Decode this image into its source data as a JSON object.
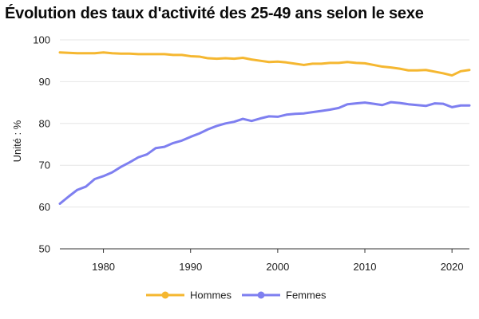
{
  "chart_data": {
    "type": "line",
    "title": "Évolution des taux d'activité des 25-49 ans selon le sexe",
    "xlabel": "",
    "ylabel": "Unité : %",
    "xlim": [
      1975,
      2022
    ],
    "ylim": [
      50,
      100
    ],
    "x_ticks": [
      1980,
      1990,
      2000,
      2010,
      2020
    ],
    "y_ticks": [
      50,
      60,
      70,
      80,
      90,
      100
    ],
    "grid": "horizontal",
    "legend_position": "bottom",
    "x": [
      1975,
      1976,
      1977,
      1978,
      1979,
      1980,
      1981,
      1982,
      1983,
      1984,
      1985,
      1986,
      1987,
      1988,
      1989,
      1990,
      1991,
      1992,
      1993,
      1994,
      1995,
      1996,
      1997,
      1998,
      1999,
      2000,
      2001,
      2002,
      2003,
      2004,
      2005,
      2006,
      2007,
      2008,
      2009,
      2010,
      2011,
      2012,
      2013,
      2014,
      2015,
      2016,
      2017,
      2018,
      2019,
      2020,
      2021,
      2022
    ],
    "series": [
      {
        "name": "Hommes",
        "color": "#F5B730",
        "values": [
          97.0,
          96.9,
          96.8,
          96.8,
          96.8,
          97.0,
          96.8,
          96.7,
          96.7,
          96.6,
          96.6,
          96.6,
          96.6,
          96.4,
          96.4,
          96.1,
          96.0,
          95.6,
          95.5,
          95.6,
          95.5,
          95.7,
          95.3,
          95.0,
          94.7,
          94.8,
          94.6,
          94.3,
          94.0,
          94.3,
          94.3,
          94.5,
          94.5,
          94.7,
          94.5,
          94.4,
          94.0,
          93.6,
          93.4,
          93.1,
          92.7,
          92.7,
          92.8,
          92.4,
          92.0,
          91.5,
          92.5,
          92.8
        ]
      },
      {
        "name": "Femmes",
        "color": "#7E7FF0",
        "values": [
          60.8,
          62.5,
          64.1,
          64.9,
          66.7,
          67.4,
          68.3,
          69.6,
          70.7,
          71.9,
          72.6,
          74.1,
          74.4,
          75.3,
          75.9,
          76.8,
          77.6,
          78.6,
          79.4,
          80.0,
          80.4,
          81.1,
          80.6,
          81.2,
          81.7,
          81.6,
          82.1,
          82.3,
          82.4,
          82.7,
          83.0,
          83.3,
          83.7,
          84.6,
          84.8,
          85.0,
          84.7,
          84.4,
          85.1,
          84.9,
          84.6,
          84.4,
          84.2,
          84.8,
          84.7,
          83.9,
          84.3,
          84.3
        ]
      }
    ]
  }
}
